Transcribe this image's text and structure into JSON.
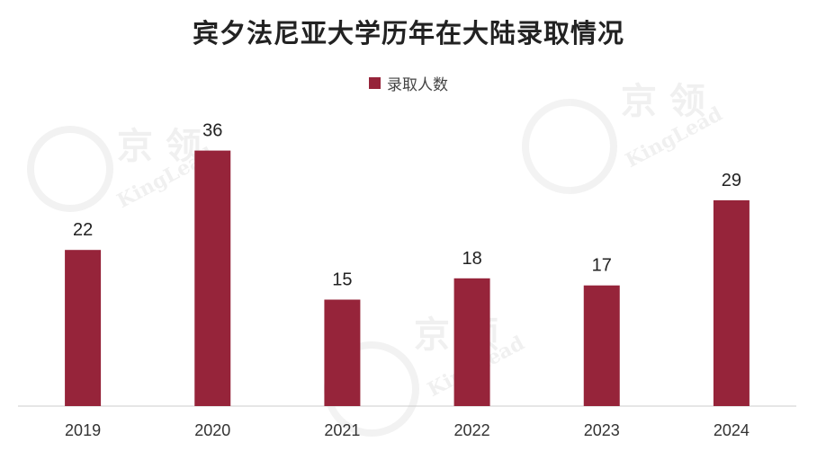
{
  "chart_data": {
    "type": "bar",
    "title": "宾夕法尼亚大学历年在大陆录取情况",
    "categories": [
      "2019",
      "2020",
      "2021",
      "2022",
      "2023",
      "2024"
    ],
    "series": [
      {
        "name": "录取人数",
        "values": [
          22,
          36,
          15,
          18,
          17,
          29
        ]
      }
    ],
    "xlabel": "",
    "ylabel": "",
    "ylim": [
      0,
      40
    ],
    "grid": false,
    "legend_position": "top-center",
    "data_labels": true
  },
  "colors": {
    "bar": "#96243a",
    "axis": "#cccccc",
    "label_text": "#222222",
    "tick_text": "#333333"
  },
  "watermark": {
    "text_cn": "京 领",
    "text_en": "KingLead"
  }
}
